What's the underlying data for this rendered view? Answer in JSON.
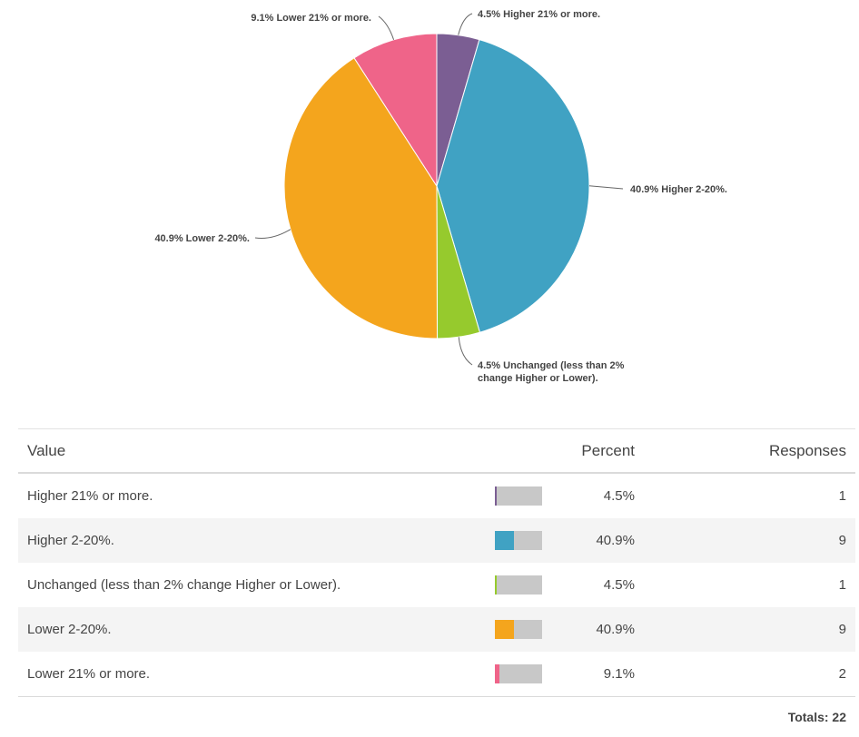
{
  "chart_data": {
    "type": "pie",
    "title": "",
    "slices": [
      {
        "label": "4.5% Higher 21% or more.",
        "category": "Higher 21% or more.",
        "value": 4.5,
        "color": "#7b5e93"
      },
      {
        "label": "40.9% Higher 2-20%.",
        "category": "Higher 2-20%.",
        "value": 40.9,
        "color": "#40a2c3"
      },
      {
        "label": "4.5% Unchanged (less than 2% change Higher or Lower).",
        "category": "Unchanged (less than 2% change Higher or Lower).",
        "value": 4.5,
        "color": "#96ca2d"
      },
      {
        "label": "40.9% Lower 2-20%.",
        "category": "Lower 2-20%.",
        "value": 40.9,
        "color": "#f4a51d"
      },
      {
        "label": "9.1% Lower 21% or more.",
        "category": "Lower 21% or more.",
        "value": 9.1,
        "color": "#ef6489"
      }
    ]
  },
  "table": {
    "headers": {
      "value": "Value",
      "percent": "Percent",
      "responses": "Responses"
    },
    "rows": [
      {
        "value": "Higher 21% or more.",
        "percent": "4.5%",
        "fraction": 0.045,
        "responses": "1",
        "color": "#7b5e93"
      },
      {
        "value": "Higher 2-20%.",
        "percent": "40.9%",
        "fraction": 0.409,
        "responses": "9",
        "color": "#40a2c3"
      },
      {
        "value": "Unchanged (less than 2% change Higher or Lower).",
        "percent": "4.5%",
        "fraction": 0.045,
        "responses": "1",
        "color": "#96ca2d"
      },
      {
        "value": "Lower 2-20%.",
        "percent": "40.9%",
        "fraction": 0.409,
        "responses": "9",
        "color": "#f4a51d"
      },
      {
        "value": "Lower 21% or more.",
        "percent": "9.1%",
        "fraction": 0.091,
        "responses": "2",
        "color": "#ef6489"
      }
    ],
    "totals": "Totals: 22"
  }
}
